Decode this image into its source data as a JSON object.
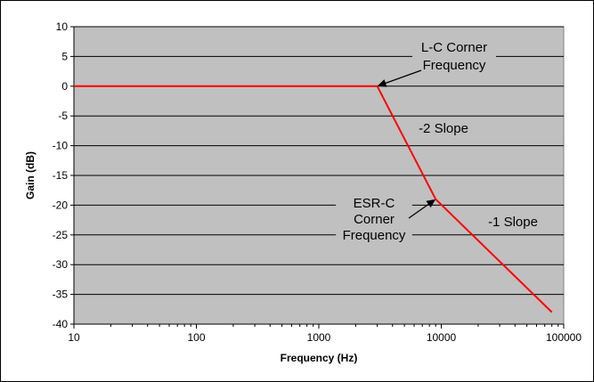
{
  "chart_data": {
    "type": "line",
    "title": "",
    "xlabel": "Frequency (Hz)",
    "ylabel": "Gain (dB)",
    "x_scale": "log",
    "xlim": [
      10,
      100000
    ],
    "ylim": [
      -40,
      10
    ],
    "x_ticks": [
      "10",
      "100",
      "1000",
      "10000",
      "100000"
    ],
    "y_ticks": [
      "10",
      "5",
      "0",
      "-5",
      "-10",
      "-15",
      "-20",
      "-25",
      "-30",
      "-35",
      "-40"
    ],
    "grid": "horizontal",
    "plot_background": "#c0c0c0",
    "legend": "none",
    "series": [
      {
        "color": "#ff0000",
        "x": [
          10,
          3000,
          9000,
          80000
        ],
        "y": [
          0,
          0,
          -19,
          -38
        ]
      }
    ],
    "annotations": [
      {
        "lines": [
          "L-C Corner",
          "Frequency"
        ],
        "points_to": [
          3000,
          0
        ]
      },
      {
        "lines": [
          "-2 Slope"
        ]
      },
      {
        "lines": [
          "ESR-C",
          "Corner",
          "Frequency"
        ],
        "points_to": [
          9000,
          -19
        ]
      },
      {
        "lines": [
          "-1 Slope"
        ]
      }
    ]
  }
}
